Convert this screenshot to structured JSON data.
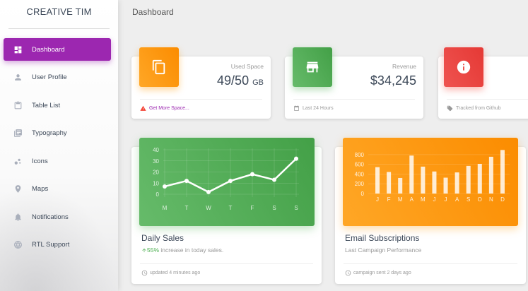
{
  "sidebar": {
    "brand": "CREATIVE TIM",
    "items": [
      {
        "label": "Dashboard",
        "icon": "dashboard-icon",
        "active": true
      },
      {
        "label": "User Profile",
        "icon": "person-icon"
      },
      {
        "label": "Table List",
        "icon": "clipboard-icon"
      },
      {
        "label": "Typography",
        "icon": "library-books-icon"
      },
      {
        "label": "Icons",
        "icon": "bubbles-icon"
      },
      {
        "label": "Maps",
        "icon": "location-pin-icon"
      },
      {
        "label": "Notifications",
        "icon": "bell-icon"
      },
      {
        "label": "RTL Support",
        "icon": "globe-icon"
      }
    ]
  },
  "header": {
    "title": "Dashboard"
  },
  "stats": [
    {
      "category": "Used Space",
      "value": "49/50",
      "unit": "GB",
      "footer": "Get More Space...",
      "icon": "copy-icon",
      "color": "#ff9800",
      "footer_icon": "warning-icon"
    },
    {
      "category": "Revenue",
      "value": "$34,245",
      "footer": "Last 24 Hours",
      "icon": "store-icon",
      "color": "#4caf50",
      "footer_icon": "calendar-icon"
    },
    {
      "category": "",
      "value": "",
      "footer": "Tracked from Github",
      "icon": "info-icon",
      "color": "#f44336",
      "footer_icon": "tag-icon"
    }
  ],
  "daily_sales": {
    "title": "Daily Sales",
    "highlight": "55%",
    "subtitle_rest": " increase in today sales.",
    "footer": "updated 4 minutes ago"
  },
  "email_subs": {
    "title": "Email Subscriptions",
    "subtitle": "Last Campaign Performance",
    "footer": "campaign sent 2 days ago"
  },
  "colors": {
    "accent": "#9c27b0",
    "green": "#4caf50",
    "orange": "#ff9800",
    "red": "#f44336",
    "warning": "#9c27b0"
  },
  "chart_data": [
    {
      "type": "line",
      "categories": [
        "M",
        "T",
        "W",
        "T",
        "F",
        "S",
        "S"
      ],
      "values": [
        7,
        12,
        2,
        12,
        18,
        13,
        32
      ],
      "ylim": [
        0,
        40
      ],
      "yticks": [
        0,
        10,
        20,
        30,
        40
      ]
    },
    {
      "type": "bar",
      "categories": [
        "J",
        "F",
        "M",
        "A",
        "M",
        "J",
        "J",
        "A",
        "S",
        "O",
        "N",
        "D"
      ],
      "values": [
        542,
        443,
        320,
        780,
        553,
        453,
        326,
        434,
        568,
        610,
        756,
        895
      ],
      "ylim": [
        0,
        900
      ],
      "yticks": [
        0,
        200,
        400,
        600,
        800
      ]
    }
  ]
}
